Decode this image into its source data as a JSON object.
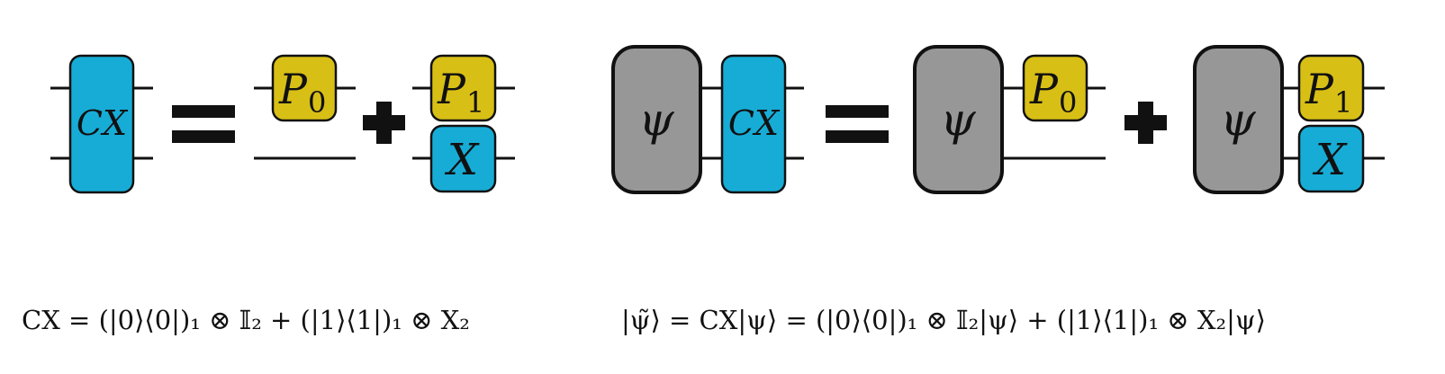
{
  "colors": {
    "cnot_gate": "#17acd6",
    "projector_gate": "#d8bf16",
    "state_gate": "#979797",
    "wire": "#111111"
  },
  "left_circuit": {
    "cx_label": "CX",
    "p0_label": "P",
    "p0_subscript": "0",
    "p1_label": "P",
    "p1_subscript": "1",
    "x_label": "X"
  },
  "right_circuit": {
    "psi_label": "ψ",
    "cx_label": "CX",
    "p0_label": "P",
    "p0_subscript": "0",
    "p1_label": "P",
    "p1_subscript": "1",
    "x_label": "X"
  },
  "formulas": {
    "left": "CX = (|0⟩⟨0|)₁ ⊗ 𝕀₂ + (|1⟩⟨1|)₁ ⊗ X₂",
    "right": "|ψ̃⟩ = CX|ψ⟩ = (|0⟩⟨0|)₁ ⊗ 𝕀₂|ψ⟩ + (|1⟩⟨1|)₁ ⊗ X₂|ψ⟩"
  }
}
